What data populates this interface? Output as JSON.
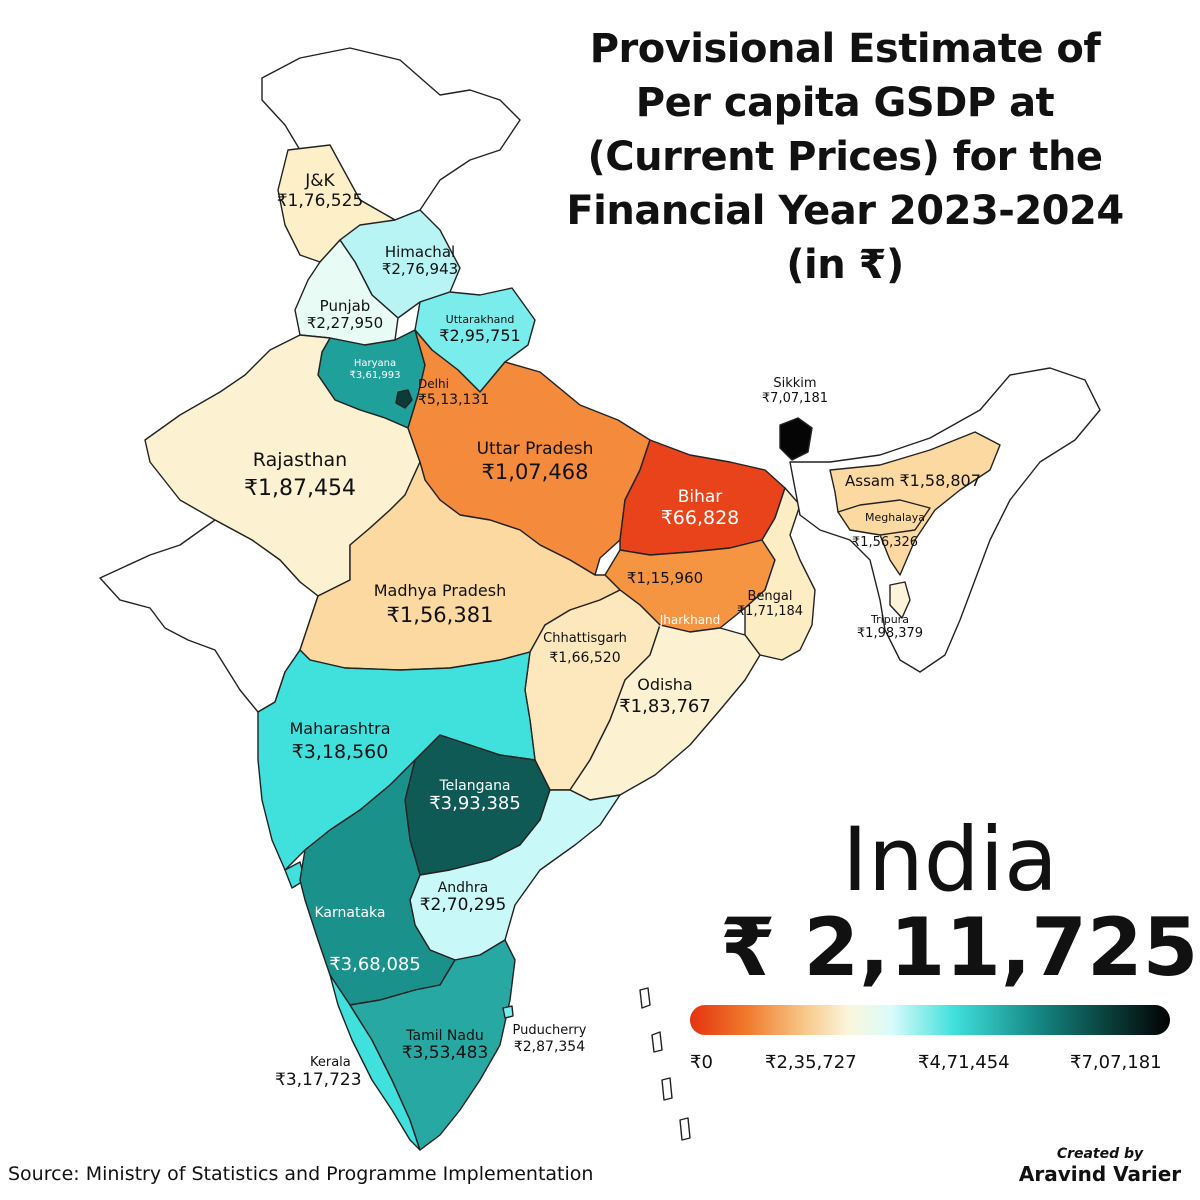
{
  "title_lines": [
    "Provisional Estimate of",
    "Per capita GSDP at",
    "(Current Prices) for the",
    "Financial Year 2023-2024",
    "(in ₹)"
  ],
  "country": {
    "name": "India",
    "value": "₹ 2,11,725"
  },
  "legend": {
    "min": "₹0",
    "t1": "₹2,35,727",
    "t2": "₹4,71,454",
    "max": "₹7,07,181",
    "colors": [
      "#e5330f",
      "#f7c98a",
      "#fbf6dc",
      "#40e0dc",
      "#168a86",
      "#020202"
    ]
  },
  "states": {
    "jk": {
      "name": "J&K",
      "value": "₹1,76,525",
      "color": "#fdf0c8"
    },
    "himachal": {
      "name": "Himachal",
      "value": "₹2,76,943",
      "color": "#b8f4f4"
    },
    "punjab": {
      "name": "Punjab",
      "value": "₹2,27,950",
      "color": "#e8fbf4"
    },
    "uttarakhand": {
      "name": "Uttarakhand",
      "value": "₹2,95,751",
      "color": "#7aecec"
    },
    "haryana": {
      "name": "Haryana",
      "value": "₹3,61,993",
      "color": "#1fa09b"
    },
    "delhi": {
      "name": "Delhi",
      "value": "₹5,13,131",
      "color": "#0b3c38"
    },
    "up": {
      "name": "Uttar Pradesh",
      "value": "₹1,07,468",
      "color": "#f48a3c"
    },
    "rajasthan": {
      "name": "Rajasthan",
      "value": "₹1,87,454",
      "color": "#fcf2d2"
    },
    "bihar": {
      "name": "Bihar",
      "value": "₹66,828",
      "color": "#e8431a"
    },
    "sikkim": {
      "name": "Sikkim",
      "value": "₹7,07,181",
      "color": "#050505"
    },
    "assam": {
      "name": "Assam",
      "value": "₹1,58,807",
      "color": "#fbd9a0"
    },
    "meghalaya": {
      "name": "Meghalaya",
      "value": "₹1,56,326",
      "color": "#fbd9a0"
    },
    "tripura": {
      "name": "Tripura",
      "value": "₹1,98,379",
      "color": "#fcf3d8"
    },
    "jharkhand": {
      "name": "Jharkhand",
      "value": "₹1,15,960",
      "color": "#f59542"
    },
    "bengal": {
      "name": "Bengal",
      "value": "₹1,71,184",
      "color": "#fcedc4"
    },
    "mp": {
      "name": "Madhya Pradesh",
      "value": "₹1,56,381",
      "color": "#fbd9a0"
    },
    "chhattisgarh": {
      "name": "Chhattisgarh",
      "value": "₹1,66,520",
      "color": "#fce8bc"
    },
    "odisha": {
      "name": "Odisha",
      "value": "₹1,83,767",
      "color": "#fcf2d2"
    },
    "maharashtra": {
      "name": "Maharashtra",
      "value": "₹3,18,560",
      "color": "#40e0dc"
    },
    "telangana": {
      "name": "Telangana",
      "value": "₹3,93,385",
      "color": "#0f5a55"
    },
    "andhra": {
      "name": "Andhra",
      "value": "₹2,70,295",
      "color": "#c9f8f8"
    },
    "karnataka": {
      "name": "Karnataka",
      "value": "₹3,68,085",
      "color": "#1b918c"
    },
    "tamilnadu": {
      "name": "Tamil Nadu",
      "value": "₹3,53,483",
      "color": "#28a8a3"
    },
    "puducherry": {
      "name": "Puducherry",
      "value": "₹2,87,354",
      "color": "#7aecec"
    },
    "kerala": {
      "name": "Kerala",
      "value": "₹3,17,723",
      "color": "#40e0dc"
    },
    "gujarat": {
      "color": "#ffffff"
    },
    "ladakh": {
      "color": "#ffffff"
    },
    "goa": {
      "color": "#40e0dc"
    },
    "northeast": {
      "color": "#ffffff"
    }
  },
  "source": "Source: Ministry of Statistics and Programme Implementation",
  "credit": {
    "line1": "Created by",
    "line2": "Aravind Varier"
  }
}
